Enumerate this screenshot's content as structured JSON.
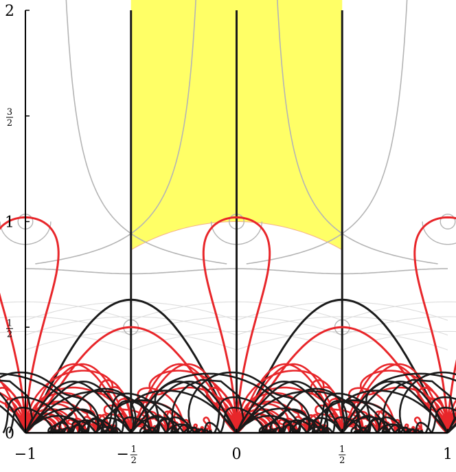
{
  "chart_data": {
    "type": "diagram",
    "x_range": [
      -1,
      1
    ],
    "y_range": [
      0,
      2
    ],
    "x_ticks": [
      {
        "value": -1,
        "label": "−1"
      },
      {
        "value": -0.5,
        "label": "−",
        "num": "1",
        "den": "2"
      },
      {
        "value": 0,
        "label": "0"
      },
      {
        "value": 0.5,
        "label": "",
        "num": "1",
        "den": "2"
      },
      {
        "value": 1,
        "label": "1"
      }
    ],
    "y_ticks": [
      {
        "value": 0,
        "label": "0"
      },
      {
        "value": 0.5,
        "label": "",
        "num": "1",
        "den": "2"
      },
      {
        "value": 1,
        "label": "1"
      },
      {
        "value": 1.5,
        "label": "",
        "num": "3",
        "den": "2"
      },
      {
        "value": 2,
        "label": "2"
      }
    ],
    "fundamental_domain": {
      "x_min": -0.5,
      "x_max": 0.5,
      "unit_circle_radius": 1,
      "fill": "#ffff66"
    },
    "vertical_black_lines_x": [
      -0.5,
      0,
      0.5
    ],
    "small_circles": [
      {
        "cx": -1,
        "cy": 1
      },
      {
        "cx": 0,
        "cy": 1
      },
      {
        "cx": 1,
        "cy": 1
      },
      {
        "cx": -0.5,
        "cy": 0.5
      },
      {
        "cx": 0.5,
        "cy": 0.5
      }
    ],
    "colors": {
      "red": "#e8262a",
      "black": "#1a1a1a",
      "gray": "#b4b4b4",
      "lightgray": "#dcdcdc",
      "yellow": "#ffff66"
    }
  }
}
